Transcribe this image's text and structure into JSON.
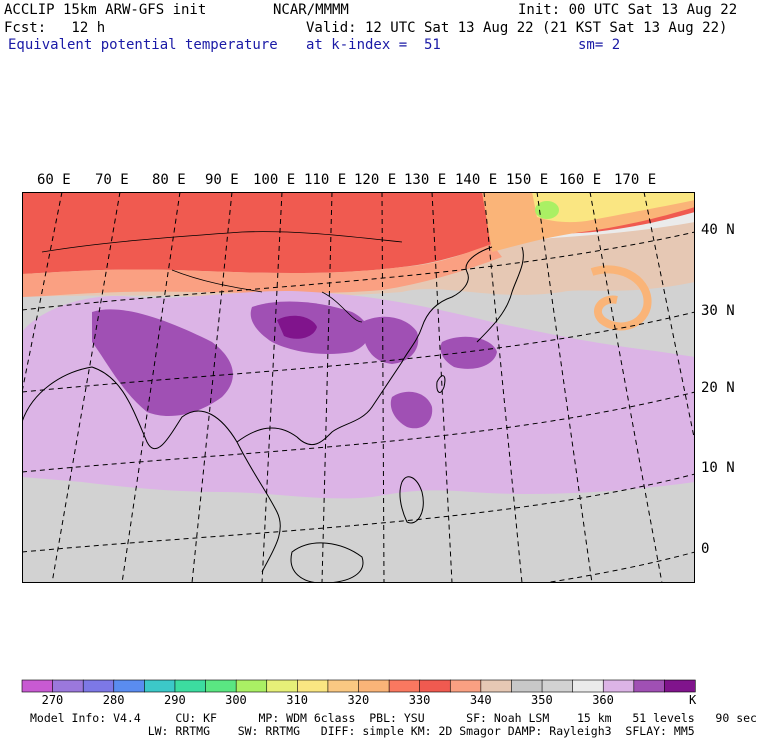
{
  "header": {
    "line1_left": "ACCLIP 15km ARW-GFS init",
    "line1_mid": "NCAR/MMMM",
    "line1_right": "Init: 00 UTC Sat 13 Aug 22",
    "line2_left": "Fcst:   12 h",
    "line2_right": "Valid: 12 UTC Sat 13 Aug 22 (21 KST Sat 13 Aug 22)",
    "line3_left": "Equivalent potential temperature",
    "line3_mid": "at k-index =  51",
    "line3_right": "sm= 2"
  },
  "map": {
    "lon_labels": [
      "60 E",
      "70 E",
      "80 E",
      "90 E",
      "100 E",
      "110 E",
      "120 E",
      "130 E",
      "140 E",
      "150 E",
      "160 E",
      "170 E"
    ],
    "lat_labels": [
      "40 N",
      "30 N",
      "20 N",
      "10 N",
      "0"
    ]
  },
  "colorbar": {
    "colors": [
      "#c85ad2",
      "#9b78dc",
      "#7d78e6",
      "#5a8cf0",
      "#3cc8c8",
      "#3cdca0",
      "#5ae682",
      "#aaf064",
      "#e6f078",
      "#fae682",
      "#fac882",
      "#fab478",
      "#fa7860",
      "#f05a50",
      "#faa082",
      "#e6c8b4",
      "#c8c8c8",
      "#d2d2d2",
      "#ebebeb",
      "#dcb4e6",
      "#a050b4",
      "#80148c"
    ],
    "labels": [
      "270",
      "280",
      "290",
      "300",
      "310",
      "320",
      "330",
      "340",
      "350",
      "360",
      "K"
    ]
  },
  "footer": {
    "line1": "Model Info: V4.4     CU: KF      MP: WDM 6class  PBL: YSU      SF: Noah LSM    15 km   51 levels   90 sec",
    "line2": "                 LW: RRTMG    SW: RRTMG   DIFF: simple KM: 2D Smagor DAMP: Rayleigh3  SFLAY: MM5"
  }
}
